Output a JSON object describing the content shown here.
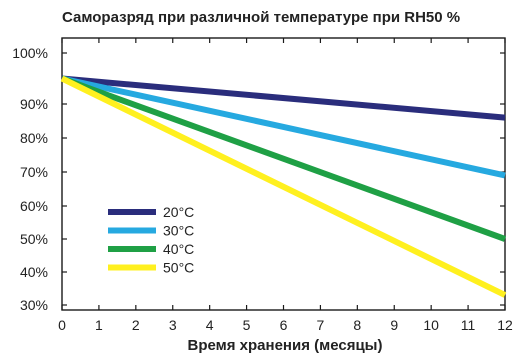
{
  "chart_data": {
    "type": "line",
    "title": "Саморазряд при различной температуре   при RH50 %",
    "xlabel": "Время хранения (месяцы)",
    "ylabel": "",
    "x": [
      0,
      12
    ],
    "xlim": [
      0,
      12
    ],
    "ylim": [
      30,
      100
    ],
    "x_ticks": [
      0,
      1,
      2,
      3,
      4,
      5,
      6,
      7,
      8,
      9,
      10,
      11,
      12
    ],
    "x_tick_labels": [
      "0",
      "1",
      "2",
      "3",
      "4",
      "5",
      "6",
      "7",
      "8",
      "9",
      "10",
      "11",
      "12"
    ],
    "y_ticks": [
      100,
      90,
      80,
      70,
      60,
      50,
      40,
      30
    ],
    "y_tick_labels": [
      "100%",
      "90%",
      "80%",
      "70%",
      "60%",
      "50%",
      "40%",
      "30%"
    ],
    "grid": false,
    "legend_position": "bottom-left",
    "series": [
      {
        "name": "20°C",
        "color": "#2a2d7c",
        "values": [
          95,
          86
        ]
      },
      {
        "name": "30°C",
        "color": "#26a9e0",
        "values": [
          95,
          69
        ]
      },
      {
        "name": "40°C",
        "color": "#1fa045",
        "values": [
          95,
          50
        ]
      },
      {
        "name": "50°C",
        "color": "#fff01f",
        "values": [
          95,
          33
        ]
      }
    ]
  }
}
